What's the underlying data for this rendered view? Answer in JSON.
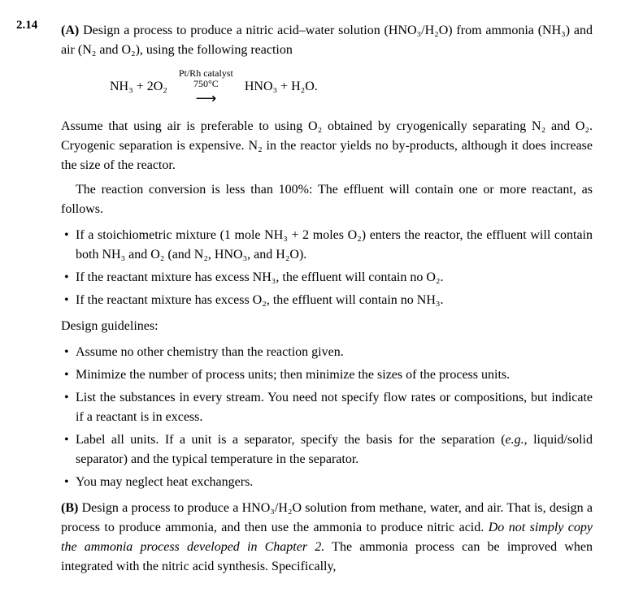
{
  "problem_number": "2.14",
  "partA": {
    "label": "(A)",
    "intro": "Design a process to produce a nitric acid–water solution (HNO₃/H₂O) from ammonia (NH₃) and air (N₂ and O₂), using the following reaction",
    "equation": {
      "lhs": "NH₃ + 2O₂",
      "catalyst_top": "Pt/Rh catalyst",
      "catalyst_bottom": "750°C",
      "rhs": "HNO₃ + H₂O."
    },
    "assume_para": "Assume that using air is preferable to using O₂ obtained by cryogenically separating N₂ and O₂. Cryogenic separation is expensive. N₂ in the reactor yields no by-products, although it does increase the size of the reactor.",
    "conversion_para": "The reaction conversion is less than 100%: The effluent will contain one or more reactant, as follows.",
    "effluent_bullets": [
      "If a stoichiometric mixture (1 mole NH₃ + 2 moles O₂) enters the reactor, the effluent will contain both NH₃ and O₂ (and N₂, HNO₃, and H₂O).",
      "If the reactant mixture has excess NH₃, the effluent will contain no O₂.",
      "If the reactant mixture has excess O₂, the effluent will contain no NH₃."
    ],
    "guidelines_label": "Design guidelines:",
    "guideline_bullets": [
      "Assume no other chemistry than the reaction given.",
      "Minimize the number of process units; then minimize the sizes of the process units.",
      "List the substances in every stream. You need not specify flow rates or compositions, but indicate if a reactant is in excess.",
      "Label all units. If a unit is a separator, specify the basis for the separation (e.g., liquid/solid separator) and the typical temperature in the separator.",
      "You may neglect heat exchangers."
    ]
  },
  "partB": {
    "label": "(B)",
    "text_before_italic": "Design a process to produce a HNO₃/H₂O solution from methane, water, and air. That is, design a process to produce ammonia, and then use the ammonia to produce nitric acid. ",
    "italic_text": "Do not simply copy the ammonia process developed in Chapter 2.",
    "text_after_italic": " The ammonia process can be improved when integrated with the nitric acid synthesis. Specifically,"
  }
}
